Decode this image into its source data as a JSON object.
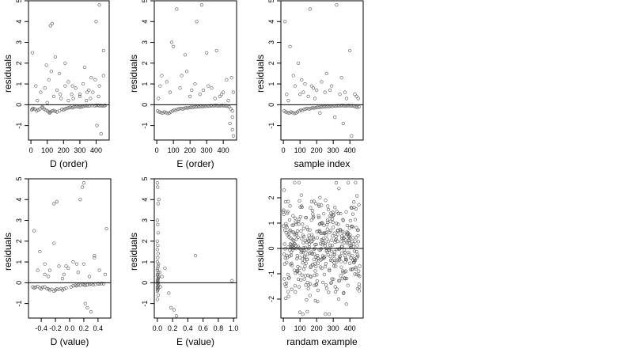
{
  "chart_data": [
    {
      "type": "scatter",
      "xlabel": "D (order)",
      "ylabel": "residuals",
      "xlim": [
        -15,
        480
      ],
      "ylim": [
        -1.7,
        5
      ],
      "xticks": [
        0,
        100,
        200,
        300,
        400
      ],
      "xtick_labels": [
        "0",
        "100",
        "200",
        "300",
        "400"
      ],
      "yticks": [
        -1,
        0,
        1,
        2,
        3,
        4,
        5
      ],
      "ytick_labels": [
        "-1",
        "0",
        "1",
        "2",
        "3",
        "4",
        "5"
      ],
      "hline": 0,
      "points": {
        "x": [
          5,
          10,
          15,
          25,
          35,
          45,
          55,
          70,
          80,
          90,
          100,
          110,
          115,
          120,
          130,
          140,
          150,
          160,
          175,
          190,
          200,
          210,
          220,
          230,
          240,
          250,
          260,
          270,
          280,
          290,
          300,
          310,
          320,
          330,
          340,
          350,
          360,
          375,
          390,
          400,
          410,
          420,
          430,
          440,
          450,
          455,
          10,
          30,
          60,
          85,
          110,
          125,
          140,
          160,
          185,
          210,
          230,
          250,
          275,
          300,
          320,
          345,
          365,
          395,
          420,
          445,
          120,
          130,
          150,
          210,
          330,
          370,
          400,
          420,
          445,
          40,
          70,
          100,
          180,
          230,
          260,
          300,
          340,
          380,
          405,
          430,
          95,
          175,
          255,
          355,
          415
        ],
        "y": [
          -0.25,
          -0.2,
          -0.18,
          -0.22,
          -0.3,
          -0.25,
          -0.2,
          -0.15,
          -0.2,
          -0.25,
          -0.3,
          -0.35,
          -0.4,
          -0.35,
          -0.3,
          -0.28,
          -0.32,
          -0.35,
          -0.3,
          -0.22,
          -0.25,
          -0.2,
          -0.18,
          -0.15,
          -0.12,
          -0.15,
          -0.12,
          -0.1,
          -0.08,
          -0.1,
          -0.12,
          -0.1,
          -0.08,
          -0.06,
          -0.05,
          -0.06,
          -0.05,
          -0.04,
          -0.05,
          -0.04,
          -0.03,
          -0.05,
          -0.04,
          -0.06,
          -0.05,
          -0.04,
          2.5,
          0.9,
          0.6,
          0.8,
          1.2,
          1.6,
          0.4,
          0.7,
          0.3,
          0.9,
          1.1,
          0.5,
          0.8,
          0.4,
          1.0,
          0.6,
          0.3,
          1.2,
          0.9,
          1.4,
          3.8,
          3.9,
          2.3,
          2.0,
          1.8,
          1.3,
          4.0,
          4.8,
          2.6,
          0.2,
          -0.1,
          0.1,
          0.5,
          0.2,
          0.3,
          0.5,
          0.2,
          0.6,
          -1.0,
          -1.4,
          1.9,
          1.5,
          0.9,
          0.7,
          0.4
        ]
      }
    },
    {
      "type": "scatter",
      "xlabel": "E (order)",
      "ylabel": "residuals",
      "xlim": [
        -15,
        480
      ],
      "ylim": [
        -1.7,
        5
      ],
      "xticks": [
        0,
        100,
        200,
        300,
        400
      ],
      "xtick_labels": [
        "0",
        "100",
        "200",
        "300",
        "400"
      ],
      "yticks": [
        -1,
        0,
        1,
        2,
        3,
        4,
        5
      ],
      "ytick_labels": [
        "-1",
        "0",
        "1",
        "2",
        "3",
        "4",
        "5"
      ],
      "hline": 0,
      "points": {
        "x": [
          5,
          15,
          25,
          35,
          45,
          55,
          65,
          75,
          85,
          95,
          105,
          115,
          125,
          135,
          145,
          155,
          165,
          175,
          185,
          195,
          205,
          215,
          225,
          235,
          245,
          255,
          265,
          275,
          285,
          295,
          305,
          315,
          325,
          335,
          345,
          355,
          365,
          375,
          385,
          395,
          405,
          415,
          425,
          435,
          445,
          455,
          20,
          60,
          90,
          120,
          150,
          180,
          210,
          240,
          270,
          300,
          330,
          360,
          390,
          420,
          450,
          455,
          460,
          440,
          10,
          80,
          140,
          200,
          260,
          280,
          350,
          380,
          430,
          460,
          455,
          30,
          100,
          170,
          230,
          310,
          400
        ],
        "y": [
          -0.3,
          -0.35,
          -0.38,
          -0.4,
          -0.35,
          -0.38,
          -0.42,
          -0.4,
          -0.35,
          -0.3,
          -0.25,
          -0.28,
          -0.22,
          -0.2,
          -0.18,
          -0.2,
          -0.18,
          -0.15,
          -0.16,
          -0.14,
          -0.12,
          -0.13,
          -0.1,
          -0.11,
          -0.09,
          -0.1,
          -0.08,
          -0.09,
          -0.07,
          -0.08,
          -0.06,
          -0.07,
          -0.05,
          -0.06,
          -0.05,
          -0.04,
          -0.05,
          -0.06,
          -0.05,
          -0.04,
          -0.06,
          -0.05,
          -0.07,
          -0.1,
          -0.2,
          -0.3,
          0.9,
          1.1,
          3.0,
          4.6,
          1.4,
          1.6,
          0.7,
          4.0,
          4.8,
          2.5,
          0.8,
          2.6,
          0.5,
          1.2,
          1.3,
          -1.2,
          -1.5,
          -0.9,
          0.3,
          0.6,
          0.8,
          0.4,
          0.5,
          0.7,
          0.3,
          0.4,
          0.2,
          0.6,
          -0.6,
          1.4,
          2.8,
          2.4,
          1.0,
          0.9,
          0.6
        ]
      }
    },
    {
      "type": "scatter",
      "xlabel": "sample index",
      "ylabel": "residuals",
      "xlim": [
        -15,
        480
      ],
      "ylim": [
        -1.7,
        5
      ],
      "xticks": [
        0,
        100,
        200,
        300,
        400
      ],
      "xtick_labels": [
        "0",
        "100",
        "200",
        "300",
        "400"
      ],
      "yticks": [
        -1,
        0,
        1,
        2,
        3,
        4,
        5
      ],
      "ytick_labels": [
        "-1",
        "0",
        "1",
        "2",
        "3",
        "4",
        "5"
      ],
      "hline": 0,
      "points": {
        "x": [
          5,
          15,
          25,
          35,
          45,
          55,
          65,
          75,
          85,
          95,
          105,
          115,
          125,
          135,
          145,
          155,
          165,
          175,
          185,
          195,
          205,
          215,
          225,
          235,
          245,
          255,
          265,
          275,
          285,
          295,
          305,
          315,
          325,
          335,
          345,
          355,
          365,
          375,
          385,
          395,
          405,
          415,
          425,
          435,
          445,
          455,
          10,
          40,
          60,
          90,
          110,
          130,
          160,
          180,
          200,
          230,
          260,
          290,
          320,
          350,
          370,
          400,
          430,
          450,
          20,
          70,
          120,
          150,
          190,
          250,
          280,
          340,
          360,
          410,
          440,
          30,
          100,
          170,
          220,
          310,
          380
        ],
        "y": [
          -0.3,
          -0.35,
          -0.38,
          -0.4,
          -0.35,
          -0.38,
          -0.42,
          -0.4,
          -0.35,
          -0.3,
          -0.25,
          -0.28,
          -0.22,
          -0.2,
          -0.18,
          -0.2,
          -0.18,
          -0.15,
          -0.16,
          -0.14,
          -0.12,
          -0.13,
          -0.1,
          -0.11,
          -0.09,
          -0.1,
          -0.08,
          -0.09,
          -0.07,
          -0.08,
          -0.06,
          -0.07,
          -0.05,
          -0.06,
          -0.05,
          -0.04,
          -0.05,
          -0.06,
          -0.05,
          -0.04,
          -0.06,
          -0.05,
          -0.07,
          -0.1,
          -0.12,
          -0.1,
          4.0,
          2.8,
          1.4,
          2.0,
          1.2,
          1.0,
          4.6,
          0.8,
          0.7,
          1.1,
          1.5,
          0.9,
          4.8,
          1.3,
          0.6,
          2.6,
          0.5,
          0.3,
          0.5,
          0.9,
          0.6,
          0.4,
          0.3,
          0.6,
          0.7,
          0.5,
          -0.9,
          -1.5,
          0.4,
          0.2,
          0.5,
          0.9,
          -0.4,
          -0.6,
          0.3
        ]
      }
    },
    {
      "type": "scatter",
      "xlabel": "D (value)",
      "ylabel": "residuals",
      "xlim": [
        -0.58,
        0.58
      ],
      "ylim": [
        -1.7,
        5
      ],
      "xticks": [
        -0.4,
        -0.2,
        0.0,
        0.2,
        0.4
      ],
      "xtick_labels": [
        "-0.4",
        "-0.2",
        "0.0",
        "0.2",
        "0.4"
      ],
      "yticks": [
        -1,
        0,
        1,
        2,
        3,
        4,
        5
      ],
      "ytick_labels": [
        "-1",
        "0",
        "1",
        "2",
        "3",
        "4",
        "5"
      ],
      "hline": 0,
      "points": {
        "x": [
          -0.52,
          -0.5,
          -0.48,
          -0.45,
          -0.42,
          -0.4,
          -0.38,
          -0.35,
          -0.32,
          -0.3,
          -0.28,
          -0.25,
          -0.22,
          -0.2,
          -0.18,
          -0.15,
          -0.12,
          -0.1,
          -0.08,
          -0.05,
          0.02,
          0.05,
          0.08,
          0.1,
          0.12,
          0.15,
          0.18,
          0.2,
          0.22,
          0.25,
          0.28,
          0.3,
          0.33,
          0.36,
          0.4,
          0.42,
          0.45,
          0.48,
          -0.5,
          -0.42,
          -0.35,
          -0.28,
          -0.22,
          -0.15,
          -0.08,
          -0.02,
          0.05,
          0.12,
          0.2,
          0.28,
          0.35,
          0.42,
          0.5,
          -0.22,
          -0.18,
          0.15,
          0.18,
          0.2,
          0.52,
          -0.35,
          -0.1,
          0.22,
          0.25,
          0.3,
          -0.45,
          -0.3,
          -0.05,
          0.1,
          0.35
        ],
        "y": [
          -0.2,
          -0.25,
          -0.22,
          -0.18,
          -0.25,
          -0.3,
          -0.22,
          -0.2,
          -0.28,
          -0.3,
          -0.35,
          -0.32,
          -0.4,
          -0.35,
          -0.3,
          -0.32,
          -0.28,
          -0.35,
          -0.3,
          -0.25,
          -0.2,
          -0.15,
          -0.12,
          -0.15,
          -0.1,
          -0.12,
          -0.08,
          -0.1,
          -0.12,
          -0.1,
          -0.08,
          -0.06,
          -0.1,
          -0.08,
          -0.05,
          -0.06,
          -0.04,
          -0.05,
          2.5,
          1.5,
          0.9,
          0.6,
          1.9,
          0.8,
          0.4,
          0.7,
          1.0,
          0.5,
          0.9,
          0.3,
          1.2,
          0.6,
          0.4,
          3.8,
          3.9,
          4.0,
          4.6,
          4.8,
          2.6,
          0.4,
          0.2,
          -1.0,
          -1.2,
          -1.4,
          0.6,
          0.3,
          0.8,
          0.9,
          1.3
        ]
      }
    },
    {
      "type": "scatter",
      "xlabel": "E (value)",
      "ylabel": "residuals",
      "xlim": [
        -0.04,
        1.04
      ],
      "ylim": [
        -1.7,
        5
      ],
      "xticks": [
        0.0,
        0.2,
        0.4,
        0.6,
        0.8,
        1.0
      ],
      "xtick_labels": [
        "0.0",
        "0.2",
        "0.4",
        "0.6",
        "0.8",
        "1.0"
      ],
      "yticks": [
        -1,
        0,
        1,
        2,
        3,
        4,
        5
      ],
      "ytick_labels": [
        "-1",
        "0",
        "1",
        "2",
        "3",
        "4",
        "5"
      ],
      "hline": 0,
      "points": {
        "x": [
          0.0,
          0.005,
          0.01,
          0.0,
          0.005,
          0.01,
          0.015,
          0.0,
          0.005,
          0.01,
          0.0,
          0.005,
          0.01,
          0.015,
          0.02,
          0.0,
          0.005,
          0.01,
          0.0,
          0.005,
          0.01,
          0.015,
          0.0,
          0.005,
          0.01,
          0.0,
          0.005,
          0.0,
          0.01,
          0.005,
          0.0,
          0.01,
          0.02,
          0.005,
          0.0,
          0.03,
          0.04,
          0.06,
          0.1,
          0.15,
          0.18,
          0.22,
          0.25,
          0.5,
          0.98,
          0.0,
          0.01
        ],
        "y": [
          -0.4,
          -0.35,
          -0.3,
          -0.25,
          -0.2,
          -0.15,
          -0.1,
          -0.05,
          0.0,
          0.05,
          0.1,
          0.15,
          0.2,
          0.25,
          0.3,
          0.35,
          0.4,
          0.5,
          0.6,
          0.7,
          0.8,
          0.9,
          1.0,
          1.2,
          1.4,
          1.6,
          1.8,
          2.0,
          2.4,
          2.8,
          3.0,
          3.8,
          4.0,
          4.6,
          4.8,
          0.5,
          -0.2,
          0.3,
          0.7,
          -0.5,
          -1.2,
          -1.3,
          -1.6,
          1.3,
          0.1,
          -0.8,
          -0.6
        ]
      }
    },
    {
      "type": "scatter",
      "xlabel": "randam example",
      "ylabel": "residuals",
      "xlim": [
        -15,
        480
      ],
      "ylim": [
        -2.75,
        2.75
      ],
      "xticks": [
        0,
        100,
        200,
        300,
        400
      ],
      "xtick_labels": [
        "0",
        "100",
        "200",
        "300",
        "400"
      ],
      "yticks": [
        -2,
        -1,
        0,
        1,
        2
      ],
      "ytick_labels": [
        "-2",
        "-1",
        "0",
        "1",
        "2"
      ],
      "hline": 0,
      "random_n": 460,
      "random_seed": 7
    }
  ]
}
